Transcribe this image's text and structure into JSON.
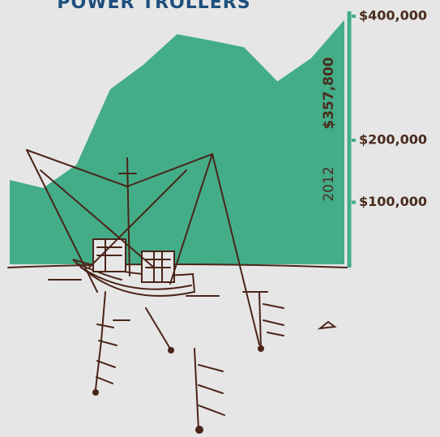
{
  "chart_data": {
    "type": "area",
    "title": "POWER TROLLERS",
    "values": [
      136000,
      123000,
      161000,
      282000,
      322000,
      371000,
      361000,
      350000,
      295000,
      332000,
      394000
    ],
    "color": "#43ad88",
    "ylim": [
      0,
      400000
    ],
    "yticks": [
      {
        "value": 100000,
        "label": "$100,000"
      },
      {
        "value": 200000,
        "label": "$200,000"
      },
      {
        "value": 400000,
        "label": "$400,000"
      }
    ],
    "annotations": [
      "$357,800",
      "2012"
    ]
  }
}
